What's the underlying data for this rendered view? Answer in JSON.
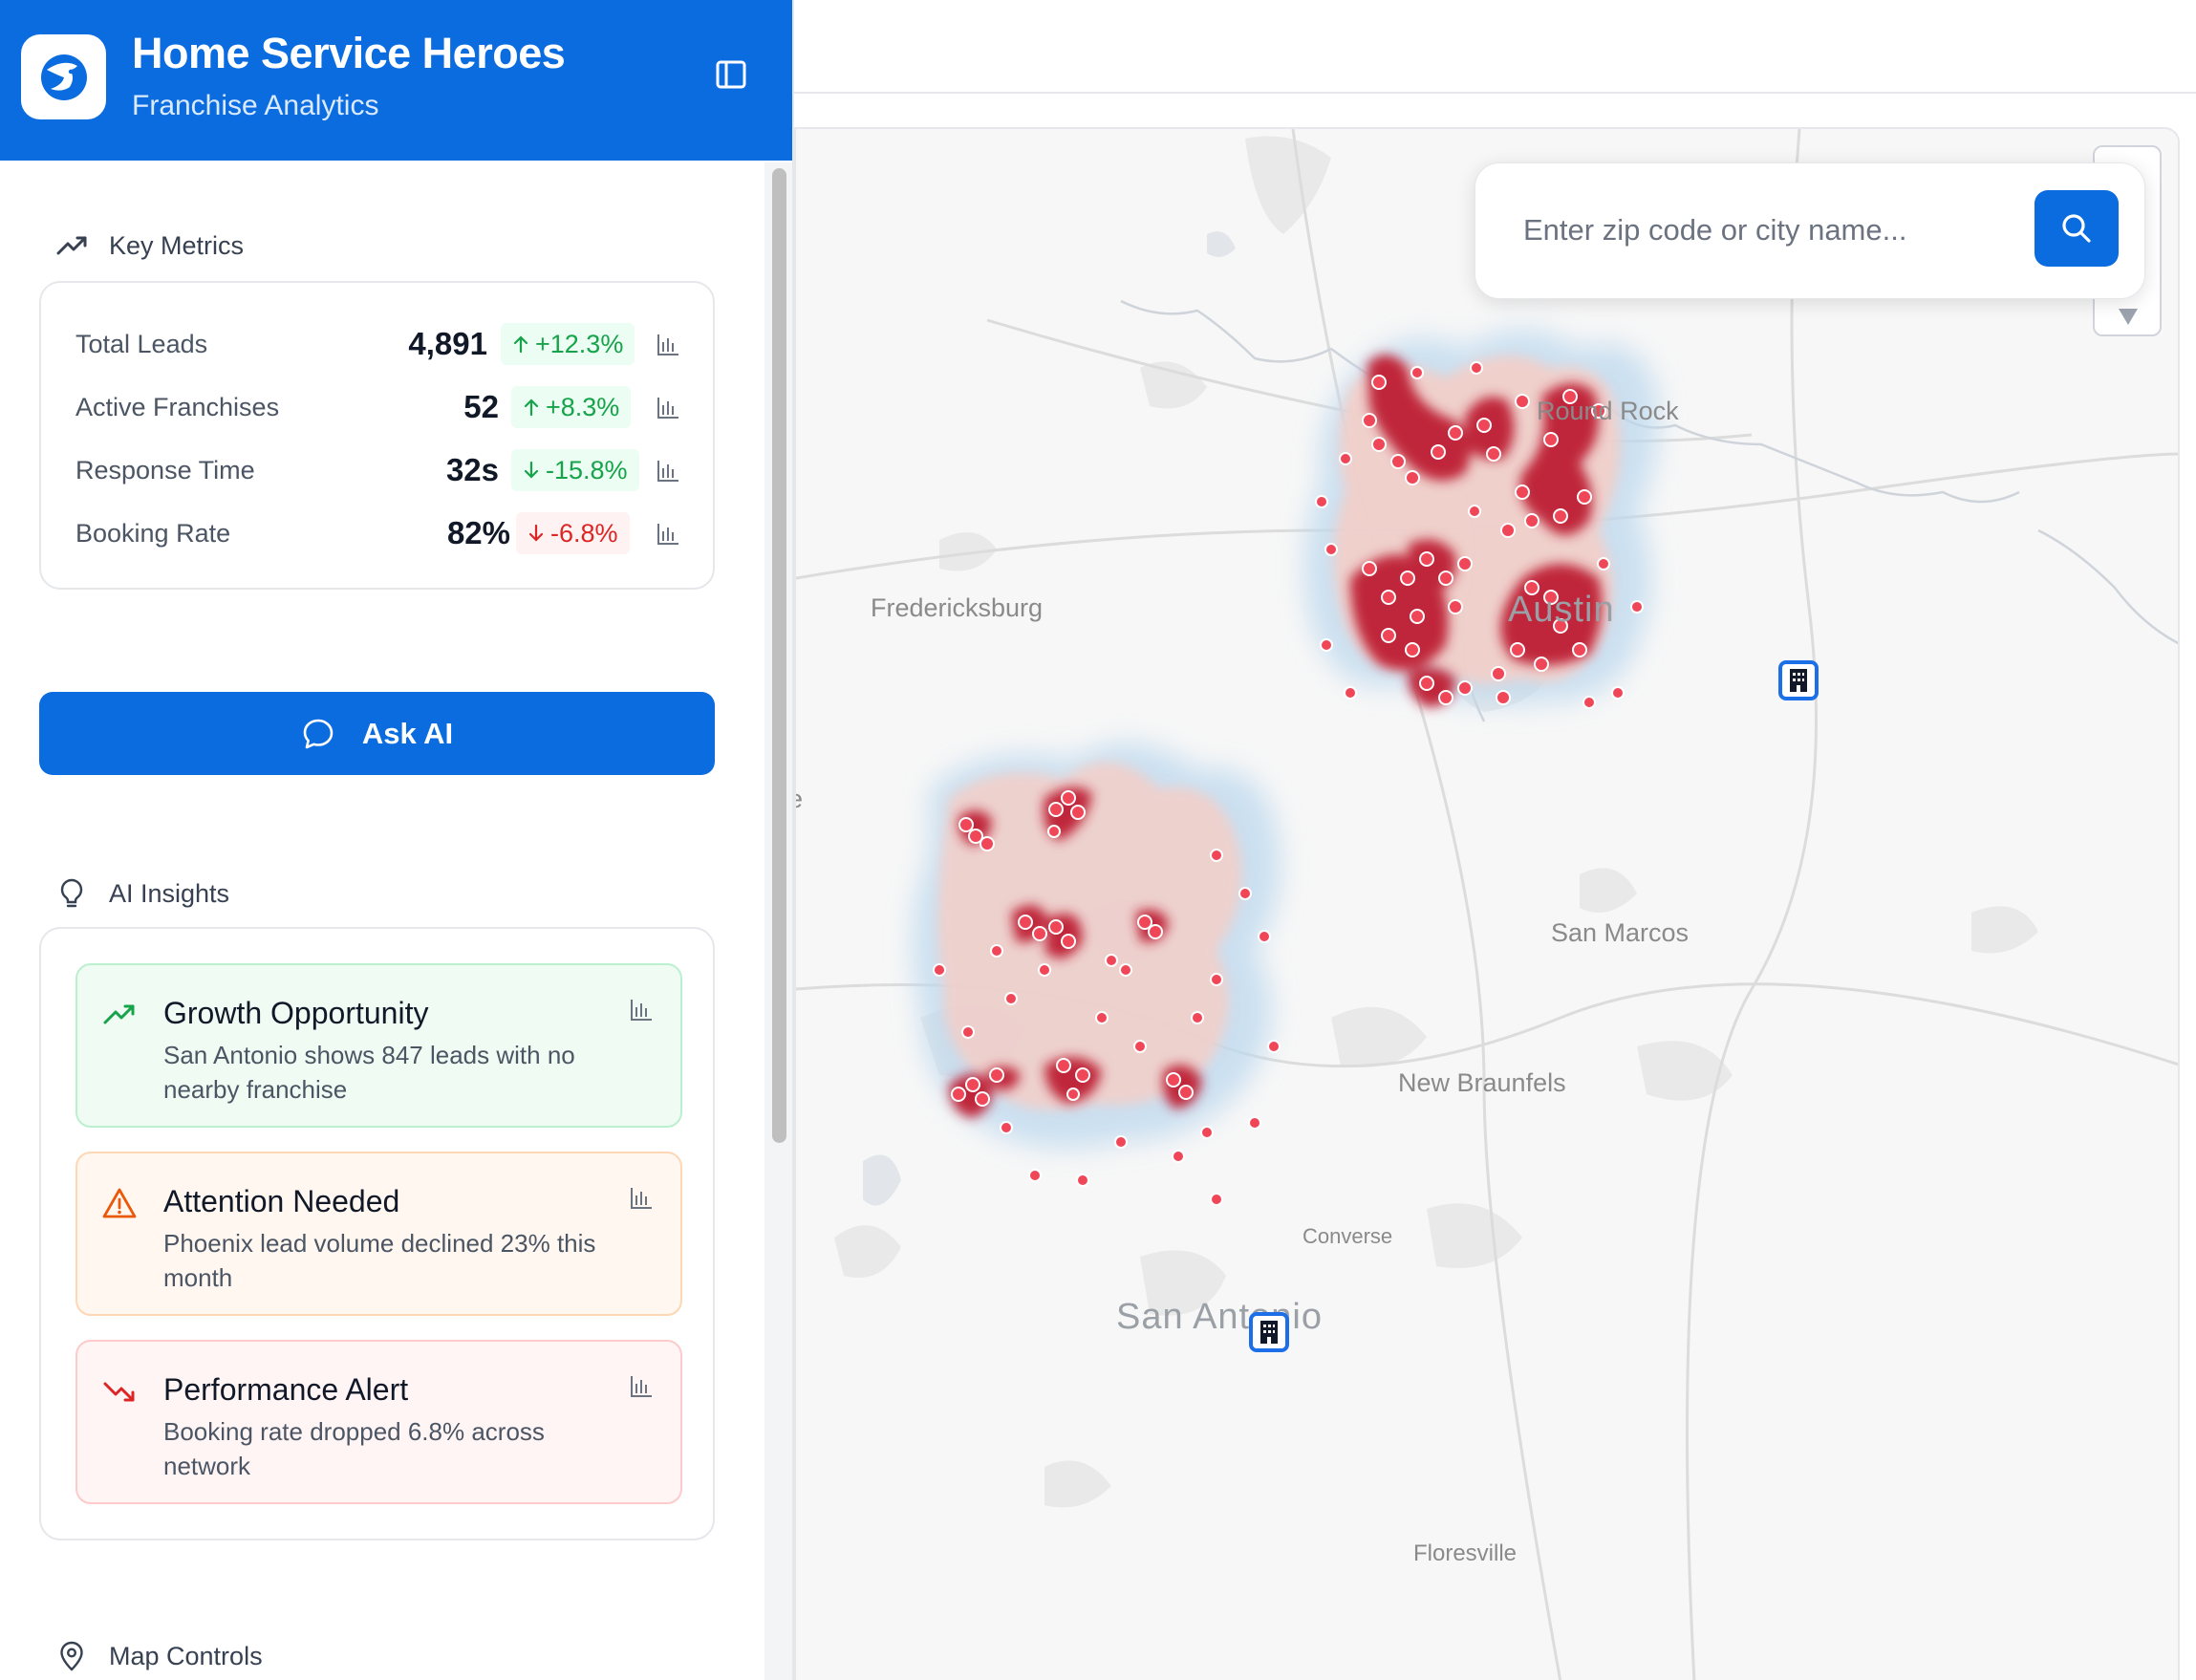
{
  "brand": {
    "title": "Home Service Heroes",
    "subtitle": "Franchise Analytics"
  },
  "key_metrics": {
    "heading": "Key Metrics",
    "rows": [
      {
        "label": "Total Leads",
        "value": "4,891",
        "change": "+12.3%",
        "direction": "up",
        "status": "positive"
      },
      {
        "label": "Active Franchises",
        "value": "52",
        "change": "+8.3%",
        "direction": "up",
        "status": "positive"
      },
      {
        "label": "Response Time",
        "value": "32s",
        "change": "-15.8%",
        "direction": "down",
        "status": "positive"
      },
      {
        "label": "Booking Rate",
        "value": "82%",
        "change": "-6.8%",
        "direction": "down",
        "status": "negative"
      }
    ]
  },
  "ask_ai": {
    "label": "Ask AI"
  },
  "ai_insights": {
    "heading": "AI Insights",
    "items": [
      {
        "title": "Growth Opportunity",
        "description": "San Antonio shows 847 leads with no nearby franchise",
        "type": "growth",
        "icon": "trending-up-icon"
      },
      {
        "title": "Attention Needed",
        "description": "Phoenix lead volume declined 23% this month",
        "type": "warning",
        "icon": "warning-triangle-icon"
      },
      {
        "title": "Performance Alert",
        "description": "Booking rate dropped 6.8% across network",
        "type": "alert",
        "icon": "trending-down-icon"
      }
    ]
  },
  "map_controls": {
    "heading": "Map Controls"
  },
  "search": {
    "placeholder": "Enter zip code or city name..."
  },
  "map": {
    "labels": {
      "fredericksburg": "Fredericksburg",
      "round_rock": "Round Rock",
      "austin": "Austin",
      "san_marcos": "San Marcos",
      "new_braunfels": "New Braunfels",
      "converse": "Converse",
      "san_antonio": "San Antonio",
      "floresville": "Floresville",
      "edge": "e"
    }
  },
  "colors": {
    "brand_blue": "#0b6ce0",
    "heat_core": "#c0263b",
    "heat_halo": "#bcd8ee",
    "positive": "#16a34a",
    "negative": "#dc2626",
    "warning": "#ea580c"
  }
}
